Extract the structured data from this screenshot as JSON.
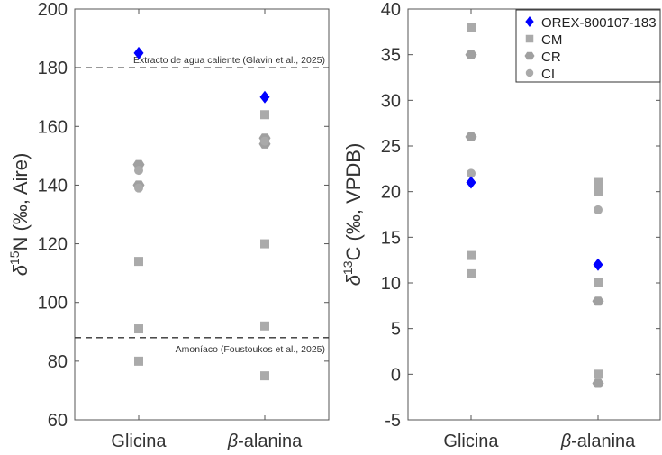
{
  "colors": {
    "orex": "#0000ff",
    "meteorite": "#aaaaaa",
    "hexagon": "#a0a0a0",
    "background": "#ffffff",
    "axis": "#555555"
  },
  "legend": {
    "placement": "top-right",
    "entries": [
      {
        "label": "OREX-800107-183",
        "marker": "diamond"
      },
      {
        "label": "CM",
        "marker": "square"
      },
      {
        "label": "CR",
        "marker": "hexagon"
      },
      {
        "label": "CI",
        "marker": "circle"
      }
    ]
  },
  "chart_data": [
    {
      "type": "scatter",
      "ylabel_main": "δ",
      "ylabel_sup": "15",
      "ylabel_rest": "N (‰, Aire)",
      "categories": [
        "Glicina",
        "β-alanina"
      ],
      "ylim": [
        60,
        200
      ],
      "yticks": [
        60,
        80,
        100,
        120,
        140,
        160,
        180,
        200
      ],
      "grid": false,
      "reference_lines": [
        {
          "y": 180,
          "label": "Extracto de agua caliente (Glavin et al., 2025)"
        },
        {
          "y": 88,
          "label": "Amoníaco (Foustoukos et al., 2025)"
        }
      ],
      "series": [
        {
          "name": "OREX-800107-183",
          "marker": "diamond",
          "points": [
            {
              "category": "Glicina",
              "y": 185
            },
            {
              "category": "β-alanina",
              "y": 170
            }
          ]
        },
        {
          "name": "CM",
          "marker": "square",
          "points": [
            {
              "category": "Glicina",
              "y": 114
            },
            {
              "category": "Glicina",
              "y": 91
            },
            {
              "category": "Glicina",
              "y": 80
            },
            {
              "category": "β-alanina",
              "y": 164
            },
            {
              "category": "β-alanina",
              "y": 120
            },
            {
              "category": "β-alanina",
              "y": 92
            },
            {
              "category": "β-alanina",
              "y": 75
            }
          ]
        },
        {
          "name": "CR",
          "marker": "hexagon",
          "points": [
            {
              "category": "Glicina",
              "y": 147
            },
            {
              "category": "Glicina",
              "y": 140
            },
            {
              "category": "β-alanina",
              "y": 156
            },
            {
              "category": "β-alanina",
              "y": 154
            }
          ]
        },
        {
          "name": "CI",
          "marker": "circle",
          "points": [
            {
              "category": "Glicina",
              "y": 145
            },
            {
              "category": "Glicina",
              "y": 139
            },
            {
              "category": "β-alanina",
              "y": 155
            }
          ]
        }
      ]
    },
    {
      "type": "scatter",
      "ylabel_main": "δ",
      "ylabel_sup": "13",
      "ylabel_rest": "C (‰, VPDB)",
      "categories": [
        "Glicina",
        "β-alanina"
      ],
      "ylim": [
        -5,
        40
      ],
      "yticks": [
        -5,
        0,
        5,
        10,
        15,
        20,
        25,
        30,
        35,
        40
      ],
      "grid": false,
      "series": [
        {
          "name": "OREX-800107-183",
          "marker": "diamond",
          "points": [
            {
              "category": "Glicina",
              "y": 21
            },
            {
              "category": "β-alanina",
              "y": 12
            }
          ]
        },
        {
          "name": "CM",
          "marker": "square",
          "points": [
            {
              "category": "Glicina",
              "y": 38
            },
            {
              "category": "Glicina",
              "y": 13
            },
            {
              "category": "Glicina",
              "y": 11
            },
            {
              "category": "β-alanina",
              "y": 21
            },
            {
              "category": "β-alanina",
              "y": 20
            },
            {
              "category": "β-alanina",
              "y": 10
            },
            {
              "category": "β-alanina",
              "y": 0
            }
          ]
        },
        {
          "name": "CR",
          "marker": "hexagon",
          "points": [
            {
              "category": "Glicina",
              "y": 35
            },
            {
              "category": "Glicina",
              "y": 26
            },
            {
              "category": "β-alanina",
              "y": 8
            },
            {
              "category": "β-alanina",
              "y": -1
            }
          ]
        },
        {
          "name": "CI",
          "marker": "circle",
          "points": [
            {
              "category": "Glicina",
              "y": 22
            },
            {
              "category": "β-alanina",
              "y": 18
            }
          ]
        }
      ]
    }
  ]
}
